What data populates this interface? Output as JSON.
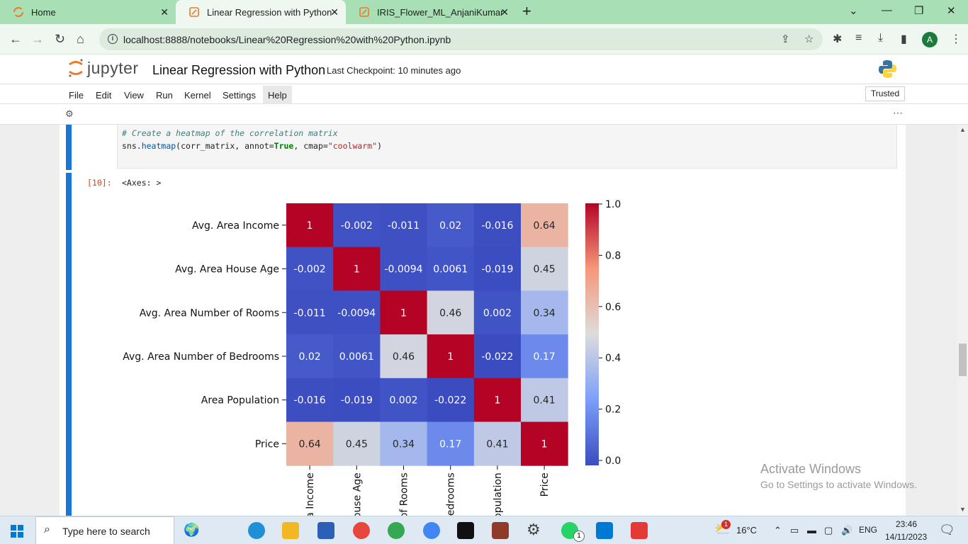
{
  "browser": {
    "tabs": [
      {
        "label": "Home"
      },
      {
        "label": "Linear Regression with Python"
      },
      {
        "label": "IRIS_Flower_ML_AnjaniKumar"
      }
    ],
    "url": "localhost:8888/notebooks/Linear%20Regression%20with%20Python.ipynb",
    "profile_initial": "A"
  },
  "jupyter": {
    "logo_text": "jupyter",
    "notebook_title": "Linear Regression with Python",
    "checkpoint": "Last Checkpoint: 10 minutes ago",
    "menu": [
      "File",
      "Edit",
      "View",
      "Run",
      "Kernel",
      "Settings",
      "Help"
    ],
    "trusted": "Trusted"
  },
  "cell": {
    "code_comment": "# Create a heatmap of the correlation matrix",
    "code_fn_prefix": "sns.",
    "code_fn": "heatmap",
    "code_args1": "(corr_matrix, annot=",
    "code_kw": "True",
    "code_args2": ", cmap=",
    "code_str": "\"coolwarm\"",
    "code_end": ")",
    "prompt": "[10]:",
    "output_text": "<Axes: >"
  },
  "chart_data": {
    "type": "heatmap",
    "rows": [
      "Avg. Area Income",
      "Avg. Area House Age",
      "Avg. Area Number of Rooms",
      "Avg. Area Number of Bedrooms",
      "Area Population",
      "Price"
    ],
    "col_labels_visible": [
      "a Income",
      "ouse Age",
      "of Rooms",
      "edrooms",
      "opulation",
      "Price"
    ],
    "values": [
      [
        1,
        -0.002,
        -0.011,
        0.02,
        -0.016,
        0.64
      ],
      [
        -0.002,
        1,
        -0.0094,
        0.0061,
        -0.019,
        0.45
      ],
      [
        -0.011,
        -0.0094,
        1,
        0.46,
        0.002,
        0.34
      ],
      [
        0.02,
        0.0061,
        0.46,
        1,
        -0.022,
        0.17
      ],
      [
        -0.016,
        -0.019,
        0.002,
        -0.022,
        1,
        0.41
      ],
      [
        0.64,
        0.45,
        0.34,
        0.17,
        0.41,
        1
      ]
    ],
    "annotations": [
      [
        "1",
        "-0.002",
        "-0.011",
        "0.02",
        "-0.016",
        "0.64"
      ],
      [
        "-0.002",
        "1",
        "-0.0094",
        "0.0061",
        "-0.019",
        "0.45"
      ],
      [
        "-0.011",
        "-0.0094",
        "1",
        "0.46",
        "0.002",
        "0.34"
      ],
      [
        "0.02",
        "0.0061",
        "0.46",
        "1",
        "-0.022",
        "0.17"
      ],
      [
        "-0.016",
        "-0.019",
        "0.002",
        "-0.022",
        "1",
        "0.41"
      ],
      [
        "0.64",
        "0.45",
        "0.34",
        "0.17",
        "0.41",
        "1"
      ]
    ],
    "colormap": "coolwarm",
    "colorbar_range": [
      -0.022,
      1.0
    ],
    "colorbar_ticks": [
      "0.0",
      "0.2",
      "0.4",
      "0.6",
      "0.8",
      "1.0"
    ]
  },
  "watermark": {
    "line1": "Activate Windows",
    "line2": "Go to Settings to activate Windows."
  },
  "taskbar": {
    "search_placeholder": "Type here to search",
    "weather": "16°C",
    "notif_count": "1",
    "whatsapp_count": "1",
    "lang": "ENG",
    "time": "23:46",
    "date": "14/11/2023"
  },
  "colors": {
    "tabbar": "#a9dfb4",
    "cell_bar": "#1976d2",
    "prompt": "#d84315"
  }
}
